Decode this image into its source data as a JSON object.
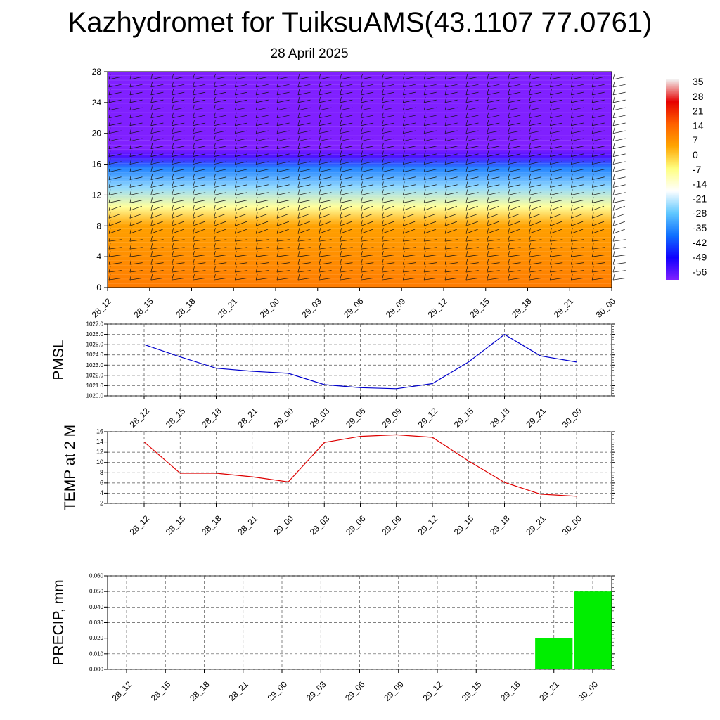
{
  "title": "Kazhydromet for TuiksuAMS(43.1107 77.0761)",
  "subtitle": "28 April 2025",
  "time_labels": [
    "28_12",
    "28_15",
    "28_18",
    "28_21",
    "29_00",
    "29_03",
    "29_06",
    "29_09",
    "29_12",
    "29_15",
    "29_18",
    "29_21",
    "30_00"
  ],
  "chart_data": [
    {
      "type": "heatmap",
      "name": "temperature-profile",
      "y_ticks": [
        0,
        4,
        8,
        12,
        16,
        20,
        24,
        28
      ],
      "ylim": [
        0,
        28
      ],
      "colorbar_labels": [
        "35",
        "28",
        "21",
        "14",
        "7",
        "0",
        "-7",
        "-14",
        "-21",
        "-28",
        "-35",
        "-42",
        "-49",
        "-56"
      ],
      "colorbar_range": [
        -60,
        38
      ],
      "colorbar_colors": [
        "#f2f2f2",
        "#e60000",
        "#ff6000",
        "#ffa500",
        "#ffff80",
        "#ffffff",
        "#60c8ff",
        "#1070ff",
        "#1000ff",
        "#8020ff"
      ],
      "approx_profile": [
        {
          "height": 0,
          "temp": 12
        },
        {
          "height": 4,
          "temp": 9
        },
        {
          "height": 8,
          "temp": 6
        },
        {
          "height": 10.5,
          "temp": -8
        },
        {
          "height": 13,
          "temp": -24
        },
        {
          "height": 15.5,
          "temp": -36
        },
        {
          "height": 17,
          "temp": -55
        },
        {
          "height": 18,
          "temp": -60
        },
        {
          "height": 28,
          "temp": -60
        }
      ],
      "x_labels_ref": "time_labels"
    },
    {
      "type": "line",
      "name": "PMSL",
      "ylabel": "PMSL",
      "ylim": [
        1020,
        1027
      ],
      "y_ticks": [
        "1020.0",
        "1021.0",
        "1022.0",
        "1023.0",
        "1024.0",
        "1025.0",
        "1026.0",
        "1027.0"
      ],
      "color": "#0000cc",
      "values": [
        1025.0,
        1023.8,
        1022.7,
        1022.4,
        1022.2,
        1021.1,
        1020.8,
        1020.7,
        1021.2,
        1023.3,
        1026.0,
        1023.9,
        1023.3
      ]
    },
    {
      "type": "line",
      "name": "TEMP at 2 M",
      "ylabel": "TEMP at 2 M",
      "ylim": [
        2,
        16
      ],
      "y_ticks": [
        "2",
        "4",
        "6",
        "8",
        "10",
        "12",
        "14",
        "16"
      ],
      "color": "#dd0000",
      "values": [
        14.0,
        7.9,
        7.9,
        7.2,
        6.2,
        13.9,
        15.1,
        15.4,
        14.9,
        10.3,
        6.1,
        3.8,
        3.4
      ]
    },
    {
      "type": "bar",
      "name": "PRECIP, mm",
      "ylabel": "PRECIP, mm",
      "ylim": [
        0,
        0.06
      ],
      "y_ticks": [
        "0.000",
        "0.010",
        "0.020",
        "0.030",
        "0.040",
        "0.050",
        "0.060"
      ],
      "color": "#00ee00",
      "values": [
        0,
        0,
        0,
        0,
        0,
        0,
        0,
        0,
        0,
        0,
        0,
        0.02,
        0.05
      ]
    }
  ]
}
